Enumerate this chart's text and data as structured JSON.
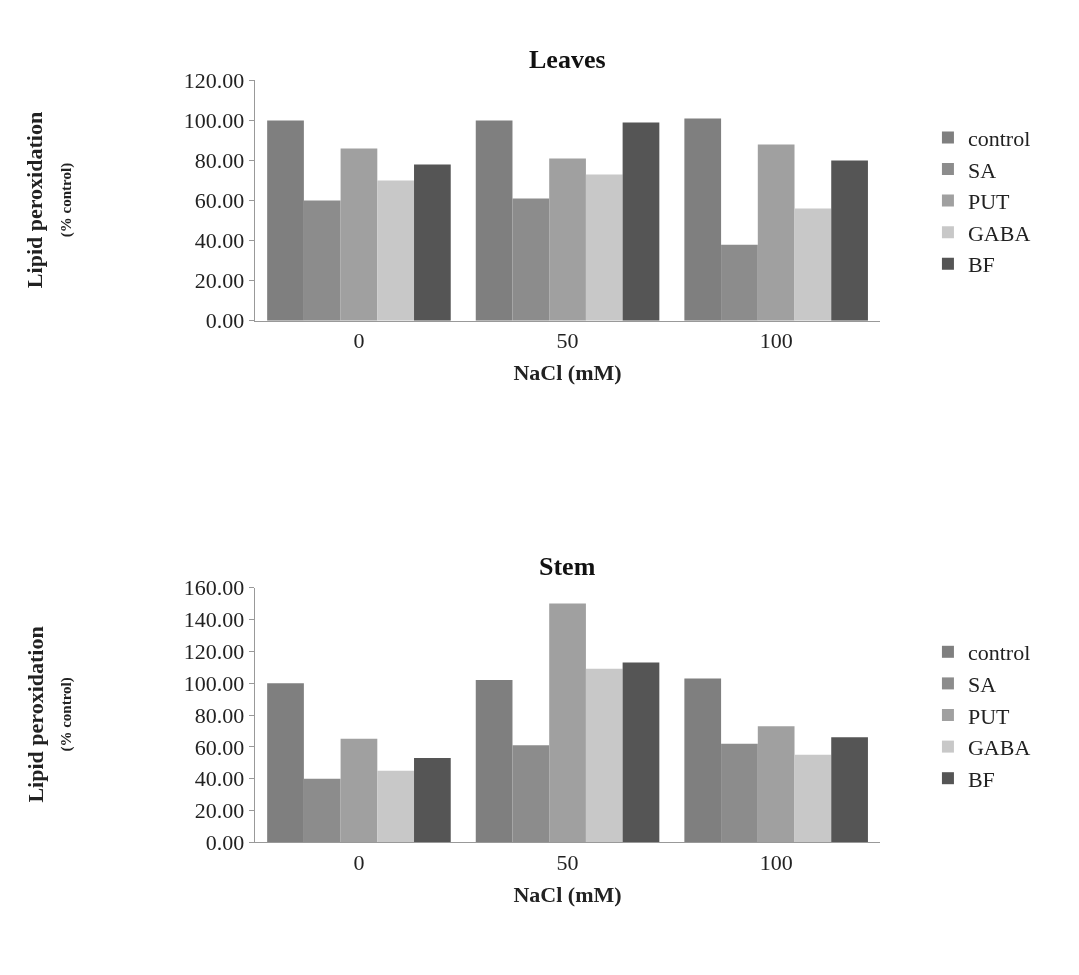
{
  "chart_data": [
    {
      "type": "bar",
      "title": "Leaves",
      "xlabel": "NaCl (mM)",
      "ylabel": "Lipid peroxidation\n(% control)",
      "categories": [
        "0",
        "50",
        "100"
      ],
      "series": [
        {
          "name": "control",
          "color": "#7f7f7f",
          "values": [
            100,
            100,
            101
          ]
        },
        {
          "name": "SA",
          "color": "#8c8c8c",
          "values": [
            60,
            61,
            38
          ]
        },
        {
          "name": "PUT",
          "color": "#a0a0a0",
          "values": [
            86,
            81,
            88
          ]
        },
        {
          "name": "GABA",
          "color": "#c8c8c8",
          "values": [
            70,
            73,
            56
          ]
        },
        {
          "name": "BF",
          "color": "#555555",
          "values": [
            78,
            99,
            80
          ]
        }
      ],
      "ylim": [
        0,
        120
      ],
      "yticks": [
        {
          "value": 0,
          "label": "0.00"
        },
        {
          "value": 20,
          "label": "20.00"
        },
        {
          "value": 40,
          "label": "40.00"
        },
        {
          "value": 60,
          "label": "60.00"
        },
        {
          "value": 80,
          "label": "80.00"
        },
        {
          "value": 100,
          "label": "100.00"
        },
        {
          "value": 120,
          "label": "120.00"
        }
      ],
      "grid": false,
      "legend": "right"
    },
    {
      "type": "bar",
      "title": "Stem",
      "xlabel": "NaCl (mM)",
      "ylabel": "Lipid peroxidation\n(% control)",
      "categories": [
        "0",
        "50",
        "100"
      ],
      "series": [
        {
          "name": "control",
          "color": "#7f7f7f",
          "values": [
            100,
            102,
            103
          ]
        },
        {
          "name": "SA",
          "color": "#8c8c8c",
          "values": [
            40,
            61,
            62
          ]
        },
        {
          "name": "PUT",
          "color": "#a0a0a0",
          "values": [
            65,
            150,
            73
          ]
        },
        {
          "name": "GABA",
          "color": "#c8c8c8",
          "values": [
            45,
            109,
            55
          ]
        },
        {
          "name": "BF",
          "color": "#555555",
          "values": [
            53,
            113,
            66
          ]
        }
      ],
      "ylim": [
        0,
        160
      ],
      "yticks": [
        {
          "value": 0,
          "label": "0.00"
        },
        {
          "value": 20,
          "label": "20.00"
        },
        {
          "value": 40,
          "label": "40.00"
        },
        {
          "value": 60,
          "label": "60.00"
        },
        {
          "value": 80,
          "label": "80.00"
        },
        {
          "value": 100,
          "label": "100.00"
        },
        {
          "value": 120,
          "label": "120.00"
        },
        {
          "value": 140,
          "label": "140.00"
        },
        {
          "value": 160,
          "label": "160.00"
        }
      ],
      "grid": false,
      "legend": "right"
    }
  ]
}
